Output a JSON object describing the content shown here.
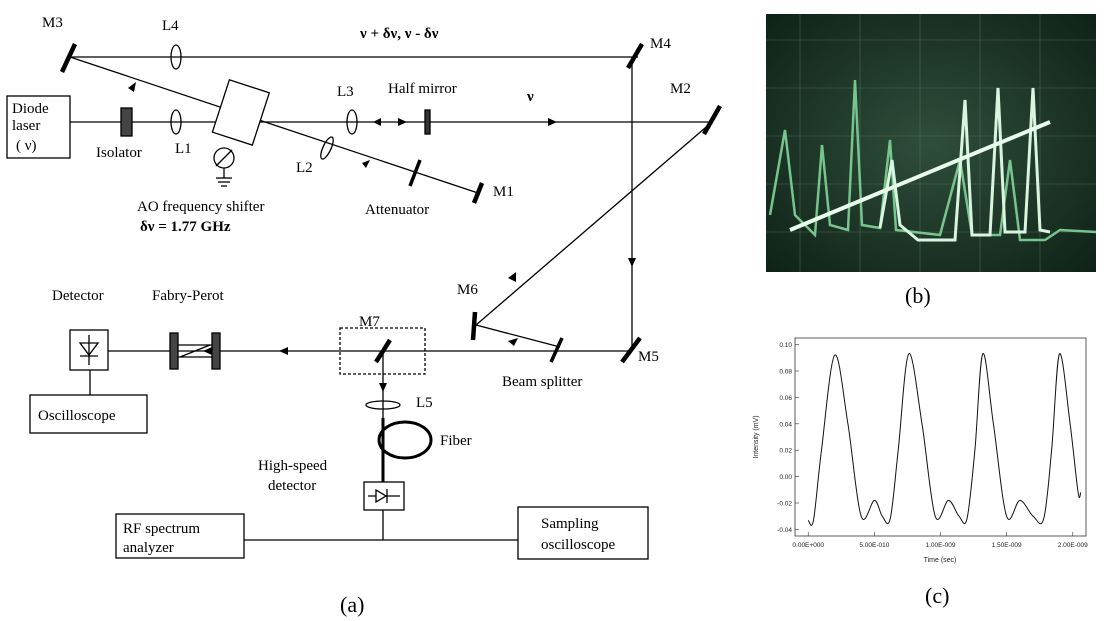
{
  "diagram": {
    "mirrors": {
      "m1": "M1",
      "m2": "M2",
      "m3": "M3",
      "m4": "M4",
      "m5": "M5",
      "m6": "M6",
      "m7": "M7"
    },
    "lenses": {
      "l1": "L1",
      "l2": "L2",
      "l3": "L3",
      "l4": "L4",
      "l5": "L5"
    },
    "beam_top": "ν + δν, ν - δν",
    "beam_main": "ν",
    "half_mirror": "Half mirror",
    "diode_laser": [
      "Diode",
      "laser",
      "( ν)"
    ],
    "isolator": "Isolator",
    "ao_shifter": "AO frequency shifter",
    "ao_delta": "δν = 1.77 GHz",
    "attenuator": "Attenuator",
    "detector": "Detector",
    "fabry_perot": "Fabry-Perot",
    "oscilloscope": "Oscilloscope",
    "beam_splitter": "Beam splitter",
    "fiber": "Fiber",
    "high_speed_detector": [
      "High-speed",
      "detector"
    ],
    "rf_analyzer": [
      "RF spectrum",
      "analyzer"
    ],
    "sampling_scope": [
      "Sampling",
      "oscilloscope"
    ],
    "caption": "(a)"
  },
  "photo": {
    "caption": "(b)"
  },
  "plot": {
    "caption": "(c)",
    "chart_data": {
      "type": "line",
      "xlabel": "Time (sec)",
      "ylabel": "Intensity (mV)",
      "yticks": [
        "0.10",
        "0.08",
        "0.06",
        "0.04",
        "0.02",
        "0.00",
        "-0.02",
        "-0.04"
      ],
      "xticks": [
        "0.00E+000",
        "5.00E-010",
        "1.00E-009",
        "1.50E-009",
        "2.00E-009"
      ],
      "ylim": [
        -0.045,
        0.105
      ],
      "xlim": [
        -1e-10,
        2.1e-09
      ],
      "series": [
        {
          "x": [
            0.0,
            4e-11,
            1e-10,
            2e-10,
            3e-10,
            4e-10,
            5e-10,
            5.6e-10,
            6.2e-10,
            6.8e-10,
            7.6e-10,
            8.6e-10,
            9.6e-10,
            1.06e-09,
            1.14e-09,
            1.2e-09,
            1.26e-09,
            1.32e-09,
            1.4e-09,
            1.5e-09,
            1.6e-09,
            1.7e-09,
            1.78e-09,
            1.84e-09,
            1.9e-09,
            1.98e-09,
            2.04e-09,
            2.06e-09
          ],
          "y": [
            -0.033,
            -0.033,
            0.02,
            0.092,
            0.04,
            -0.03,
            -0.018,
            -0.03,
            -0.032,
            0.02,
            0.093,
            0.04,
            -0.03,
            -0.018,
            -0.03,
            -0.032,
            0.02,
            0.093,
            0.04,
            -0.03,
            -0.018,
            -0.03,
            -0.032,
            0.02,
            0.093,
            0.04,
            -0.012,
            -0.012
          ]
        }
      ]
    }
  }
}
